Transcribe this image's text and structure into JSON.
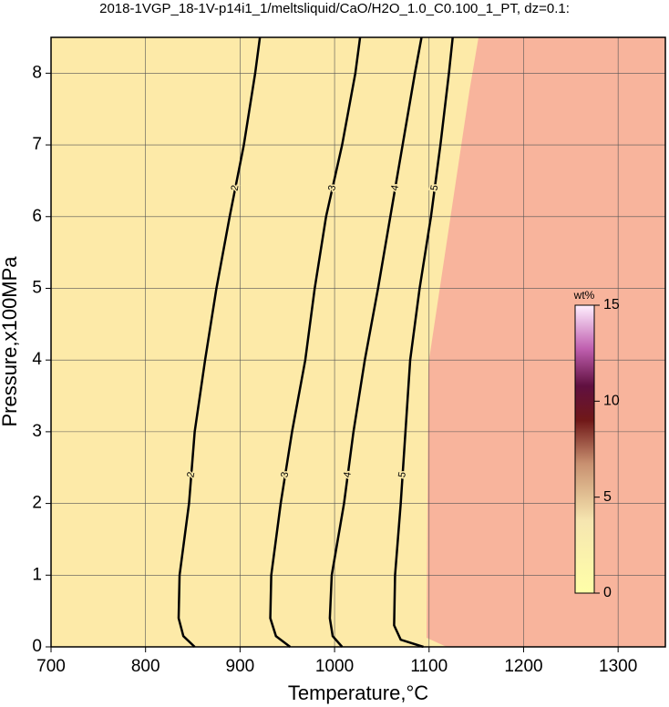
{
  "chart_data": {
    "type": "contour",
    "title": "2018-1VGP_18-1V-p14i1_1/meltsliquid/CaO/H2O_1.0_C0.100_1_PT, dz=0.1:",
    "x_label": "Temperature,°C",
    "y_label": "Pressure,x100MPa",
    "xlim": [
      700,
      1350
    ],
    "xticks": [
      700,
      800,
      900,
      1000,
      1100,
      1200,
      1300
    ],
    "ylim": [
      0,
      8.5
    ],
    "yticks": [
      0,
      1,
      2,
      3,
      4,
      5,
      6,
      7,
      8
    ],
    "grid": true,
    "contours": [
      {
        "level": 2,
        "T": [
          852,
          840,
          835,
          836,
          846,
          852,
          863,
          875,
          889,
          904,
          916,
          921
        ],
        "P": [
          0,
          0.15,
          0.4,
          1,
          2,
          3,
          4,
          5,
          6,
          7,
          8,
          8.5
        ]
      },
      {
        "level": 3,
        "T": [
          953,
          938,
          932,
          933,
          943,
          955,
          969,
          979,
          991,
          1008,
          1022,
          1027
        ],
        "P": [
          0,
          0.15,
          0.4,
          1,
          2,
          3,
          4,
          5,
          6,
          7,
          8,
          8.5
        ]
      },
      {
        "level": 4,
        "T": [
          1008,
          998,
          995,
          997,
          1010,
          1020,
          1032,
          1046,
          1059,
          1072,
          1085,
          1092
        ],
        "P": [
          0,
          0.15,
          0.4,
          1,
          2,
          3,
          4,
          5,
          6,
          7,
          8,
          8.5
        ]
      },
      {
        "level": 5,
        "T": [
          1094,
          1070,
          1063,
          1064,
          1070,
          1075,
          1080,
          1090,
          1102,
          1112,
          1121,
          1125
        ],
        "P": [
          0,
          0.1,
          0.3,
          1,
          2,
          3,
          4,
          5,
          6,
          7,
          8,
          8.5
        ]
      }
    ],
    "colorbar": {
      "label": "wt%",
      "clim": [
        0,
        15
      ],
      "ticks": [
        0,
        5,
        10,
        15
      ]
    }
  }
}
